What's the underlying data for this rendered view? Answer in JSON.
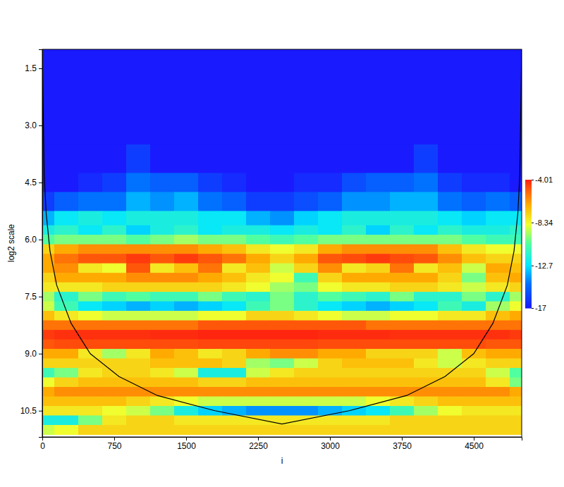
{
  "chart_data": {
    "type": "heatmap",
    "x_label": "i",
    "y_label": "log2 scale",
    "x": [
      0,
      250,
      500,
      750,
      1000,
      1250,
      1500,
      1750,
      2000,
      2250,
      2500,
      2750,
      3000,
      3250,
      3500,
      3750,
      4000,
      4250,
      4500,
      4750,
      5000
    ],
    "y": [
      1,
      2,
      3,
      4,
      4.5,
      5,
      5.5,
      5.75,
      6,
      6.25,
      6.5,
      6.75,
      7,
      7.25,
      7.5,
      7.75,
      8,
      8.25,
      8.5,
      8.75,
      9,
      9.25,
      9.5,
      9.75,
      10,
      10.25,
      10.5,
      10.75,
      11
    ],
    "z": [
      [
        -17,
        -17,
        -17,
        -17,
        -17,
        -17,
        -17,
        -17,
        -17,
        -17,
        -17,
        -17,
        -17,
        -17,
        -17,
        -17,
        -17,
        -17,
        -17,
        -17,
        -17
      ],
      [
        -17,
        -17,
        -17,
        -17,
        -17,
        -17,
        -17,
        -17,
        -17,
        -17,
        -17,
        -17,
        -17,
        -17,
        -17,
        -17,
        -17,
        -17,
        -17,
        -17,
        -17
      ],
      [
        -17,
        -17,
        -17,
        -17,
        -17,
        -17,
        -17,
        -17,
        -17,
        -17,
        -17,
        -17,
        -17,
        -17,
        -17,
        -17,
        -17,
        -17,
        -17,
        -17,
        -17
      ],
      [
        -17,
        -17,
        -17,
        -17,
        -16,
        -17,
        -17,
        -17,
        -17,
        -17,
        -17,
        -17,
        -17,
        -17,
        -17,
        -17,
        -16,
        -17,
        -17,
        -17,
        -17
      ],
      [
        -17,
        -17,
        -16.5,
        -16,
        -14.5,
        -15,
        -15,
        -16,
        -16.5,
        -17,
        -17,
        -16.5,
        -16.5,
        -15.5,
        -15,
        -15,
        -14.5,
        -16,
        -16.5,
        -16.5,
        -17
      ],
      [
        -16,
        -15,
        -14.5,
        -14.5,
        -13.5,
        -14,
        -13.5,
        -14.5,
        -15,
        -16,
        -16,
        -15.5,
        -15,
        -14,
        -14,
        -13.5,
        -13.5,
        -14.5,
        -15,
        -14.5,
        -15
      ],
      [
        -13.5,
        -12.5,
        -12,
        -12.5,
        -12,
        -12,
        -12,
        -12.5,
        -12.5,
        -13.5,
        -14,
        -13,
        -12.5,
        -12,
        -12,
        -12,
        -12,
        -12.5,
        -13,
        -12.5,
        -12.5
      ],
      [
        -12,
        -11.5,
        -12.5,
        -11.5,
        -13,
        -12,
        -11.5,
        -12.5,
        -12,
        -12,
        -12.5,
        -12,
        -12.5,
        -11.5,
        -13,
        -11.5,
        -12.5,
        -11.5,
        -12,
        -12,
        -11.5
      ],
      [
        -10.5,
        -10,
        -10,
        -10,
        -10.5,
        -10,
        -9.5,
        -10,
        -10,
        -10.5,
        -11,
        -10.5,
        -10,
        -10,
        -10,
        -10,
        -10,
        -10,
        -10.5,
        -11,
        -11
      ],
      [
        -7.5,
        -6.5,
        -6,
        -6,
        -6,
        -6,
        -6,
        -6.5,
        -7,
        -8,
        -8.5,
        -8,
        -6.5,
        -6,
        -6,
        -6,
        -6,
        -7,
        -8,
        -8.5,
        -8.5
      ],
      [
        -6.5,
        -5.5,
        -5,
        -5,
        -4.5,
        -5,
        -4.5,
        -5,
        -5.5,
        -6.5,
        -7.5,
        -6.5,
        -5,
        -4.8,
        -4.5,
        -4.8,
        -5,
        -6,
        -7,
        -7.5,
        -7.5
      ],
      [
        -6.5,
        -6,
        -8,
        -8.5,
        -5,
        -8,
        -7,
        -5.5,
        -8,
        -7,
        -9,
        -7.5,
        -6,
        -8,
        -7.5,
        -5.5,
        -8,
        -7,
        -9,
        -6.5,
        -7
      ],
      [
        -7.5,
        -6.5,
        -6.5,
        -6.5,
        -6,
        -6,
        -6,
        -6.5,
        -7,
        -8,
        -8.5,
        -11,
        -7.5,
        -6.5,
        -6.5,
        -6.5,
        -6.5,
        -7.5,
        -10,
        -7,
        -6.5
      ],
      [
        -8,
        -8,
        -8,
        -7.5,
        -7.5,
        -7.5,
        -7.5,
        -7.5,
        -8,
        -8.5,
        -9.5,
        -10,
        -8.5,
        -8,
        -8,
        -7.5,
        -7.5,
        -8,
        -9,
        -8,
        -7.5
      ],
      [
        -9.5,
        -11.5,
        -10,
        -11,
        -10.5,
        -11,
        -11,
        -10,
        -11,
        -11.5,
        -10,
        -11.5,
        -10.5,
        -11,
        -11.5,
        -10,
        -11.5,
        -11.5,
        -10,
        -11.5,
        -9.5
      ],
      [
        -9,
        -11,
        -12.5,
        -13,
        -13.5,
        -13,
        -13.5,
        -13,
        -12.5,
        -11,
        -10,
        -11.5,
        -12.5,
        -13,
        -13.5,
        -13,
        -12.5,
        -11,
        -12,
        -9.5,
        -8.5
      ],
      [
        -7,
        -8,
        -8.5,
        -9,
        -9,
        -9,
        -9,
        -8.5,
        -8.5,
        -7.5,
        -7.5,
        -8,
        -8.5,
        -9,
        -9,
        -8.5,
        -8.5,
        -8,
        -8,
        -7,
        -6.5
      ],
      [
        -5.5,
        -5.5,
        -5.5,
        -5.5,
        -5.5,
        -5.5,
        -5.5,
        -5,
        -5,
        -5,
        -5,
        -5,
        -5,
        -5,
        -5.5,
        -5.5,
        -5.5,
        -5.5,
        -5.5,
        -5.5,
        -5.5
      ],
      [
        -4.5,
        -4.3,
        -4.3,
        -4.3,
        -4.3,
        -4.2,
        -4.2,
        -4.1,
        -4.1,
        -4.1,
        -4.1,
        -4.1,
        -4.2,
        -4.2,
        -4.2,
        -4.3,
        -4.3,
        -4.3,
        -4.3,
        -4.3,
        -4.5
      ],
      [
        -5,
        -4.8,
        -4.8,
        -4.8,
        -4.8,
        -4.8,
        -4.8,
        -4.7,
        -4.7,
        -4.7,
        -4.7,
        -4.7,
        -4.8,
        -4.8,
        -4.8,
        -4.8,
        -4.8,
        -4.8,
        -4.8,
        -5,
        -5
      ],
      [
        -6.5,
        -6.5,
        -8,
        -9.5,
        -8,
        -6.5,
        -7,
        -8,
        -7.5,
        -6.5,
        -6,
        -6,
        -6.5,
        -6.5,
        -7.5,
        -7.5,
        -7.5,
        -9,
        -7,
        -6.5,
        -6.5
      ],
      [
        -7.5,
        -7.5,
        -7.5,
        -7.5,
        -7.5,
        -7,
        -7,
        -7,
        -7.5,
        -9.5,
        -10,
        -9,
        -7.5,
        -7,
        -7,
        -7,
        -8,
        -9,
        -8,
        -7.5,
        -7.5
      ],
      [
        -11,
        -10,
        -8,
        -7.5,
        -7.5,
        -8,
        -9,
        -12,
        -12,
        -9,
        -8,
        -7.5,
        -7.5,
        -7.5,
        -7.5,
        -7.5,
        -7.5,
        -7.5,
        -7.5,
        -9,
        -10.5
      ],
      [
        -8.5,
        -7.5,
        -7,
        -7,
        -7,
        -7,
        -7,
        -7.5,
        -7.5,
        -7,
        -7,
        -7,
        -7,
        -7,
        -7,
        -7,
        -7,
        -7,
        -7,
        -8,
        -10
      ],
      [
        -6.5,
        -6,
        -6,
        -6,
        -6,
        -6,
        -6,
        -6,
        -6,
        -6,
        -6,
        -6,
        -6,
        -6,
        -6,
        -6,
        -6,
        -6,
        -6,
        -6,
        -6.5
      ],
      [
        -7,
        -7,
        -7,
        -7,
        -7.5,
        -8,
        -8.5,
        -9,
        -9,
        -9,
        -9,
        -9,
        -9,
        -9,
        -8.5,
        -8,
        -7.5,
        -7,
        -7,
        -7,
        -7
      ],
      [
        -8,
        -8,
        -8,
        -8.5,
        -9,
        -10,
        -12,
        -13,
        -13.5,
        -14,
        -14,
        -14,
        -13.5,
        -13,
        -12.5,
        -11,
        -9.5,
        -8.5,
        -8,
        -8,
        -8
      ],
      [
        -12,
        -12,
        -10,
        -8,
        -7.5,
        -7.5,
        -8,
        -8,
        -8,
        -8,
        -8,
        -8,
        -8,
        -8,
        -8,
        -7.5,
        -7.5,
        -7.5,
        -7.5,
        -7.5,
        -7.5
      ],
      [
        -9,
        -8.5,
        -7.5,
        -7.5,
        -7.5,
        -7.5,
        -7.5,
        -7.5,
        -7.5,
        -7.5,
        -7.5,
        -7.5,
        -7.5,
        -7.5,
        -7.5,
        -7.5,
        -7.5,
        -7.5,
        -7.5,
        -7.5,
        -7.5
      ]
    ],
    "xlim": [
      0,
      5000
    ],
    "ylim": [
      1,
      11.19
    ],
    "xticks": [
      0,
      750,
      1500,
      2250,
      3000,
      3750,
      4500
    ],
    "yticks": [
      1.5,
      {
        "value": 3,
        "label": "3.0"
      },
      4.5,
      {
        "value": 6,
        "label": "6.0"
      },
      7.5,
      {
        "value": 9,
        "label": "9.0"
      },
      10.5
    ],
    "colorbar": {
      "range": [
        -17,
        -4.01
      ],
      "ticks": [
        -4.01,
        -8.34,
        -12.7,
        -17
      ]
    },
    "coi": {
      "x": [
        0,
        20,
        40,
        80,
        150,
        300,
        500,
        800,
        1200,
        1800,
        2500,
        3200,
        3800,
        4200,
        4500,
        4700,
        4850,
        4920,
        4960,
        4980,
        5000
      ],
      "y": [
        1,
        4.3,
        5.3,
        6.3,
        7.2,
        8.2,
        9,
        9.6,
        10.1,
        10.5,
        10.85,
        10.5,
        10.1,
        9.6,
        9,
        8.2,
        7.2,
        6.3,
        5.3,
        4.3,
        1
      ]
    }
  }
}
